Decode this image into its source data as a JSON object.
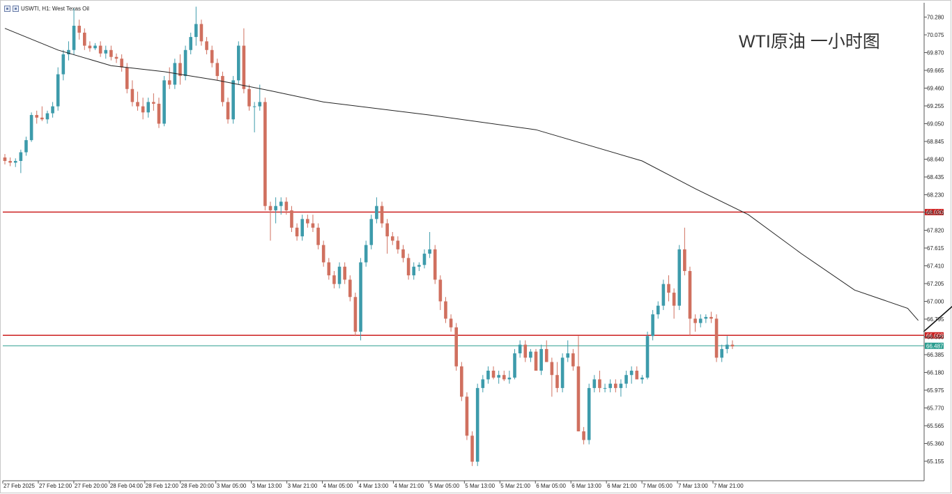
{
  "window": {
    "symbol_title": "USWTI, H1: West Texas Oil"
  },
  "chart_data": {
    "type": "candlestick",
    "title": "WTI原油 一小时图",
    "symbol": "USWTI",
    "timeframe": "H1",
    "instrument": "West Texas Oil",
    "y_ticks": [
      "70.280",
      "70.075",
      "69.870",
      "69.665",
      "69.460",
      "69.255",
      "69.050",
      "68.845",
      "68.640",
      "68.435",
      "68.230",
      "68.025",
      "67.820",
      "67.615",
      "67.410",
      "67.205",
      "67.000",
      "66.795",
      "66.590",
      "66.385",
      "66.180",
      "65.975",
      "65.770",
      "65.565",
      "65.360",
      "65.155"
    ],
    "ylim": [
      65.0,
      70.35
    ],
    "x_ticks": [
      "27 Feb 2025",
      "27 Feb 12:00",
      "27 Feb 20:00",
      "28 Feb 04:00",
      "28 Feb 12:00",
      "28 Feb 20:00",
      "3 Mar 05:00",
      "3 Mar 13:00",
      "3 Mar 21:00",
      "4 Mar 05:00",
      "4 Mar 13:00",
      "4 Mar 21:00",
      "5 Mar 05:00",
      "5 Mar 13:00",
      "5 Mar 21:00",
      "6 Mar 05:00",
      "6 Mar 13:00",
      "6 Mar 21:00",
      "7 Mar 05:00",
      "7 Mar 13:00",
      "7 Mar 21:00"
    ],
    "horizontal_levels": [
      {
        "value": 68.03,
        "label": "68.030",
        "color": "#cc1f1f"
      },
      {
        "value": 66.608,
        "label": "66.608",
        "color": "#cc1f1f"
      },
      {
        "value": 66.487,
        "label": "66.487",
        "color": "#2a9d8f",
        "kind": "current-price"
      }
    ],
    "colors": {
      "bull": "#3d9bab",
      "bear": "#d0705f",
      "ma": "#222222",
      "grid": "none"
    },
    "ohlc": [
      [
        68.66,
        68.7,
        68.58,
        68.62
      ],
      [
        68.62,
        68.66,
        68.56,
        68.6
      ],
      [
        68.6,
        68.65,
        68.55,
        68.62
      ],
      [
        68.62,
        68.75,
        68.48,
        68.72
      ],
      [
        68.72,
        68.9,
        68.68,
        68.86
      ],
      [
        68.86,
        69.18,
        68.84,
        69.15
      ],
      [
        69.15,
        69.2,
        69.05,
        69.12
      ],
      [
        69.12,
        69.25,
        69.08,
        69.1
      ],
      [
        69.1,
        69.2,
        69.05,
        69.17
      ],
      [
        69.17,
        69.3,
        69.12,
        69.25
      ],
      [
        69.25,
        69.7,
        69.2,
        69.62
      ],
      [
        69.62,
        69.9,
        69.55,
        69.85
      ],
      [
        69.85,
        70.0,
        69.78,
        69.9
      ],
      [
        69.9,
        70.38,
        69.85,
        70.18
      ],
      [
        70.18,
        70.25,
        70.02,
        70.1
      ],
      [
        70.1,
        70.15,
        69.9,
        69.95
      ],
      [
        69.95,
        70.0,
        69.88,
        69.92
      ],
      [
        69.92,
        69.98,
        69.9,
        69.95
      ],
      [
        69.95,
        70.0,
        69.82,
        69.86
      ],
      [
        69.86,
        69.95,
        69.8,
        69.9
      ],
      [
        69.9,
        69.95,
        69.78,
        69.82
      ],
      [
        69.82,
        69.86,
        69.75,
        69.8
      ],
      [
        69.8,
        69.85,
        69.65,
        69.7
      ],
      [
        69.7,
        69.75,
        69.4,
        69.45
      ],
      [
        69.45,
        69.55,
        69.25,
        69.3
      ],
      [
        69.3,
        69.42,
        69.2,
        69.25
      ],
      [
        69.25,
        69.35,
        69.1,
        69.18
      ],
      [
        69.18,
        69.35,
        69.12,
        69.3
      ],
      [
        69.3,
        69.4,
        69.2,
        69.28
      ],
      [
        69.28,
        69.35,
        69.0,
        69.05
      ],
      [
        69.05,
        69.6,
        69.02,
        69.55
      ],
      [
        69.55,
        69.7,
        69.45,
        69.5
      ],
      [
        69.5,
        69.8,
        69.45,
        69.75
      ],
      [
        69.75,
        69.85,
        69.5,
        69.6
      ],
      [
        69.6,
        69.95,
        69.55,
        69.9
      ],
      [
        69.9,
        70.1,
        69.85,
        70.05
      ],
      [
        70.05,
        70.4,
        69.95,
        70.2
      ],
      [
        70.2,
        70.25,
        69.95,
        70.0
      ],
      [
        70.0,
        70.05,
        69.85,
        69.9
      ],
      [
        69.9,
        69.95,
        69.7,
        69.75
      ],
      [
        69.75,
        69.8,
        69.55,
        69.6
      ],
      [
        69.6,
        69.65,
        69.25,
        69.3
      ],
      [
        69.3,
        69.35,
        69.05,
        69.1
      ],
      [
        69.1,
        69.6,
        69.05,
        69.55
      ],
      [
        69.55,
        70.0,
        69.5,
        69.95
      ],
      [
        69.95,
        70.15,
        69.4,
        69.45
      ],
      [
        69.45,
        69.5,
        69.2,
        69.25
      ],
      [
        69.25,
        69.3,
        68.95,
        69.25
      ],
      [
        69.25,
        69.5,
        69.2,
        69.3
      ],
      [
        69.3,
        69.35,
        68.05,
        68.1
      ],
      [
        68.1,
        68.15,
        67.7,
        68.05
      ],
      [
        68.05,
        68.2,
        67.9,
        68.1
      ],
      [
        68.1,
        68.2,
        68.0,
        68.15
      ],
      [
        68.15,
        68.2,
        68.0,
        68.05
      ],
      [
        68.05,
        68.1,
        67.8,
        67.85
      ],
      [
        67.85,
        67.9,
        67.7,
        67.75
      ],
      [
        67.75,
        68.0,
        67.7,
        67.95
      ],
      [
        67.95,
        68.0,
        67.85,
        67.9
      ],
      [
        67.9,
        68.0,
        67.8,
        67.85
      ],
      [
        67.85,
        67.9,
        67.6,
        67.65
      ],
      [
        67.65,
        67.7,
        67.4,
        67.45
      ],
      [
        67.45,
        67.5,
        67.25,
        67.3
      ],
      [
        67.3,
        67.35,
        67.15,
        67.2
      ],
      [
        67.2,
        67.45,
        67.15,
        67.4
      ],
      [
        67.4,
        67.45,
        67.2,
        67.25
      ],
      [
        67.25,
        67.3,
        67.0,
        67.05
      ],
      [
        67.05,
        67.1,
        66.6,
        66.65
      ],
      [
        66.65,
        67.5,
        66.55,
        67.45
      ],
      [
        67.45,
        67.7,
        67.4,
        67.65
      ],
      [
        67.65,
        68.0,
        67.6,
        67.95
      ],
      [
        67.95,
        68.2,
        67.9,
        68.1
      ],
      [
        68.1,
        68.15,
        67.85,
        67.9
      ],
      [
        67.9,
        67.95,
        67.55,
        67.75
      ],
      [
        67.75,
        67.8,
        67.65,
        67.7
      ],
      [
        67.7,
        67.75,
        67.55,
        67.6
      ],
      [
        67.6,
        67.65,
        67.45,
        67.5
      ],
      [
        67.5,
        67.55,
        67.25,
        67.3
      ],
      [
        67.3,
        67.45,
        67.25,
        67.4
      ],
      [
        67.4,
        67.45,
        67.35,
        67.42
      ],
      [
        67.42,
        67.6,
        67.38,
        67.55
      ],
      [
        67.55,
        67.8,
        67.5,
        67.6
      ],
      [
        67.6,
        67.65,
        67.2,
        67.25
      ],
      [
        67.25,
        67.3,
        66.9,
        67.0
      ],
      [
        67.0,
        67.05,
        66.75,
        66.8
      ],
      [
        66.8,
        66.85,
        66.65,
        66.7
      ],
      [
        66.7,
        66.75,
        66.2,
        66.25
      ],
      [
        66.25,
        66.3,
        65.85,
        65.9
      ],
      [
        65.9,
        65.95,
        65.4,
        65.45
      ],
      [
        65.45,
        65.5,
        65.1,
        65.15
      ],
      [
        65.15,
        66.05,
        65.1,
        66.0
      ],
      [
        66.0,
        66.15,
        65.95,
        66.1
      ],
      [
        66.1,
        66.25,
        66.05,
        66.2
      ],
      [
        66.2,
        66.25,
        66.1,
        66.12
      ],
      [
        66.12,
        66.2,
        66.05,
        66.15
      ],
      [
        66.15,
        66.2,
        66.08,
        66.1
      ],
      [
        66.1,
        66.2,
        66.05,
        66.12
      ],
      [
        66.12,
        66.45,
        66.1,
        66.4
      ],
      [
        66.4,
        66.55,
        66.35,
        66.5
      ],
      [
        66.5,
        66.55,
        66.3,
        66.35
      ],
      [
        66.35,
        66.45,
        66.3,
        66.42
      ],
      [
        66.42,
        66.45,
        66.2,
        66.2
      ],
      [
        66.2,
        66.5,
        66.15,
        66.45
      ],
      [
        66.45,
        66.55,
        66.3,
        66.3
      ],
      [
        66.3,
        66.35,
        65.9,
        66.15
      ],
      [
        66.15,
        66.3,
        65.95,
        66.0
      ],
      [
        66.0,
        66.4,
        65.95,
        66.35
      ],
      [
        66.35,
        66.55,
        66.3,
        66.4
      ],
      [
        66.4,
        66.45,
        66.2,
        66.25
      ],
      [
        66.25,
        66.6,
        65.5,
        65.5
      ],
      [
        65.5,
        65.55,
        65.35,
        65.4
      ],
      [
        65.4,
        66.05,
        65.35,
        66.0
      ],
      [
        66.0,
        66.15,
        65.95,
        66.1
      ],
      [
        66.1,
        66.2,
        65.95,
        66.0
      ],
      [
        66.0,
        66.05,
        65.95,
        66.0
      ],
      [
        66.0,
        66.1,
        65.95,
        66.05
      ],
      [
        66.05,
        66.1,
        65.95,
        66.0
      ],
      [
        66.0,
        66.1,
        65.9,
        66.05
      ],
      [
        66.05,
        66.2,
        66.0,
        66.15
      ],
      [
        66.15,
        66.25,
        66.05,
        66.2
      ],
      [
        66.2,
        66.25,
        66.1,
        66.1
      ],
      [
        66.1,
        66.15,
        66.05,
        66.12
      ],
      [
        66.12,
        66.65,
        66.1,
        66.6
      ],
      [
        66.6,
        66.9,
        66.55,
        66.85
      ],
      [
        66.85,
        67.0,
        66.8,
        66.95
      ],
      [
        66.95,
        67.25,
        66.9,
        67.2
      ],
      [
        67.2,
        67.3,
        67.0,
        67.1
      ],
      [
        67.1,
        67.15,
        66.8,
        66.95
      ],
      [
        66.95,
        67.65,
        66.9,
        67.6
      ],
      [
        67.6,
        67.85,
        67.3,
        67.35
      ],
      [
        67.35,
        67.4,
        66.6,
        66.8
      ],
      [
        66.8,
        66.85,
        66.65,
        66.75
      ],
      [
        66.75,
        66.85,
        66.7,
        66.8
      ],
      [
        66.8,
        66.85,
        66.75,
        66.82
      ],
      [
        66.82,
        66.88,
        66.75,
        66.8
      ],
      [
        66.8,
        66.85,
        66.3,
        66.35
      ],
      [
        66.35,
        66.5,
        66.3,
        66.45
      ],
      [
        66.45,
        66.6,
        66.4,
        66.5
      ],
      [
        66.5,
        66.55,
        66.45,
        66.48
      ]
    ],
    "ma": [
      [
        0,
        70.15
      ],
      [
        10,
        69.9
      ],
      [
        20,
        69.72
      ],
      [
        30,
        69.65
      ],
      [
        40,
        69.55
      ],
      [
        50,
        69.43
      ],
      [
        60,
        69.3
      ],
      [
        80,
        69.15
      ],
      [
        100,
        68.98
      ],
      [
        120,
        68.62
      ],
      [
        130,
        68.3
      ],
      [
        140,
        68.0
      ],
      [
        150,
        67.55
      ],
      [
        160,
        67.13
      ],
      [
        170,
        66.92
      ],
      [
        172,
        66.78
      ]
    ],
    "annotation_arrow": {
      "from": [
        173,
        66.65
      ],
      "to": [
        197,
        67.95
      ]
    }
  }
}
